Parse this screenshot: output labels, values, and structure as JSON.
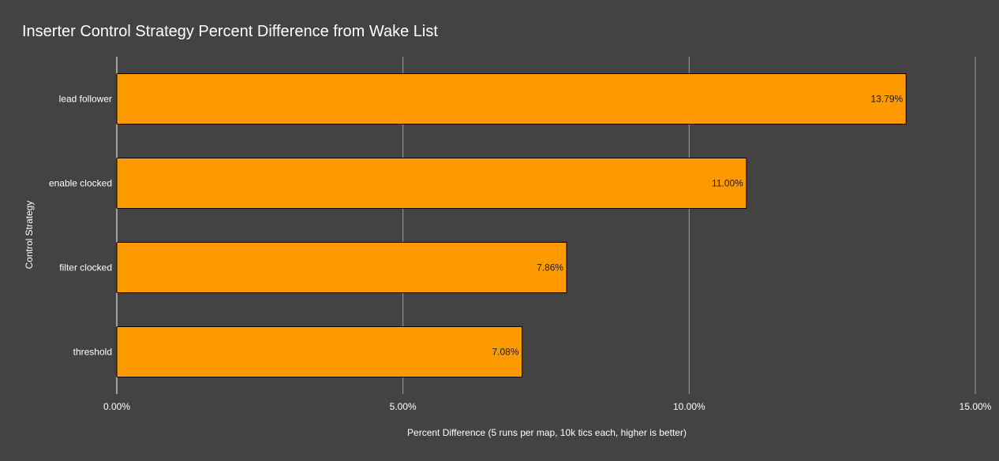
{
  "chart_data": {
    "type": "bar",
    "orientation": "horizontal",
    "title": "Inserter Control Strategy Percent Difference from Wake List",
    "xlabel": "Percent Difference (5 runs per map, 10k tics each, higher is better)",
    "ylabel": "Control Strategy",
    "categories": [
      "lead follower",
      "enable clocked",
      "filter clocked",
      "threshold"
    ],
    "values": [
      13.79,
      11.0,
      7.86,
      7.08
    ],
    "data_labels": [
      "13.79%",
      "11.00%",
      "7.86%",
      "7.08%"
    ],
    "xlim": [
      0,
      15
    ],
    "x_ticks": [
      0,
      5,
      10,
      15
    ],
    "x_tick_labels": [
      "0.00%",
      "5.00%",
      "10.00%",
      "15.00%"
    ],
    "grid": true,
    "legend": "none",
    "colors": {
      "background": "#434343",
      "bar": "#ff9900",
      "bar_outline": "#000000",
      "gridline": "#9e9e9e",
      "text": "#ffffff"
    }
  }
}
